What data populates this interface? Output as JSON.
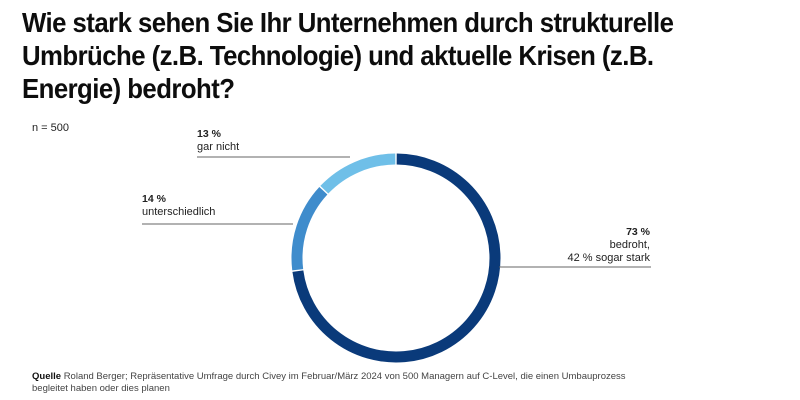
{
  "title": "Wie stark sehen Sie Ihr Unternehmen durch strukturelle Umbrüche (z.B. Technologie) und aktuelle Krisen (z.B. Energie) bedroht?",
  "sample_size": "n = 500",
  "source": {
    "label": "Quelle",
    "text": "Roland Berger; Repräsentative Umfrage durch Civey im Februar/März 2024 von 500 Managern auf C-Level, die einen Umbauprozess begleitet haben oder dies planen"
  },
  "labels": {
    "bedroht": {
      "pct": "73 %",
      "line1": "bedroht,",
      "line2": "42 % sogar stark"
    },
    "unterschiedlich": {
      "pct": "14 %",
      "line1": "unterschiedlich"
    },
    "gar_nicht": {
      "pct": "13 %",
      "line1": "gar nicht"
    }
  },
  "chart_data": {
    "type": "pie",
    "variant": "donut",
    "title": "Wie stark sehen Sie Ihr Unternehmen durch strukturelle Umbrüche (z.B. Technologie) und aktuelle Krisen (z.B. Energie) bedroht?",
    "n": 500,
    "categories": [
      "bedroht",
      "unterschiedlich",
      "gar nicht"
    ],
    "values": [
      73,
      14,
      13
    ],
    "unit": "%",
    "colors": [
      "#0a3a7a",
      "#3f8ccc",
      "#6fbfe8"
    ],
    "annotations": [
      "bedroht, 42 % sogar stark"
    ],
    "start": "top",
    "direction": "clockwise"
  }
}
